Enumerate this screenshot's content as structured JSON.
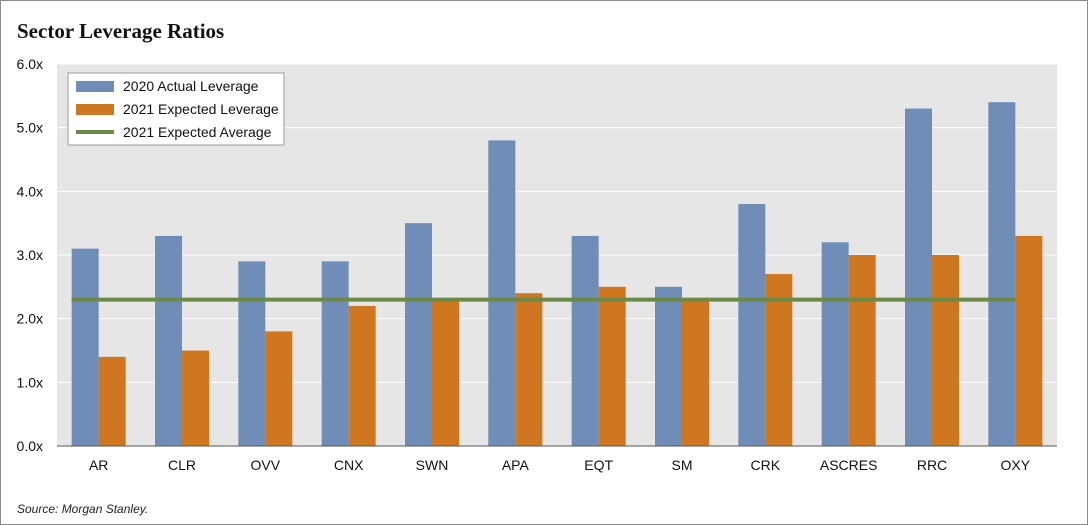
{
  "title": "Sector Leverage Ratios",
  "source": "Source: Morgan Stanley.",
  "colors": {
    "actual": "#6f8db7",
    "expected": "#cf7720",
    "average": "#6b8a45",
    "plot_bg": "#e6e6e6",
    "grid": "#ffffff"
  },
  "chart_data": {
    "type": "bar",
    "title": "Sector Leverage Ratios",
    "categories": [
      "AR",
      "CLR",
      "OVV",
      "CNX",
      "SWN",
      "APA",
      "EQT",
      "SM",
      "CRK",
      "ASCRES",
      "RRC",
      "OXY"
    ],
    "series": [
      {
        "name": "2020 Actual Leverage",
        "values": [
          3.1,
          3.3,
          2.9,
          2.9,
          3.5,
          4.8,
          3.3,
          2.5,
          3.8,
          3.2,
          5.3,
          5.4
        ]
      },
      {
        "name": "2021 Expected Leverage",
        "values": [
          1.4,
          1.5,
          1.8,
          2.2,
          2.3,
          2.4,
          2.5,
          2.3,
          2.7,
          3.0,
          3.0,
          3.3
        ]
      }
    ],
    "reference_line": {
      "name": "2021 Expected Average",
      "value": 2.3
    },
    "ylim": [
      0,
      6
    ],
    "yticks": [
      "0.0x",
      "1.0x",
      "2.0x",
      "3.0x",
      "4.0x",
      "5.0x",
      "6.0x"
    ],
    "ytick_values": [
      0,
      1,
      2,
      3,
      4,
      5,
      6
    ],
    "grid": true,
    "legend_position": "top-left"
  }
}
